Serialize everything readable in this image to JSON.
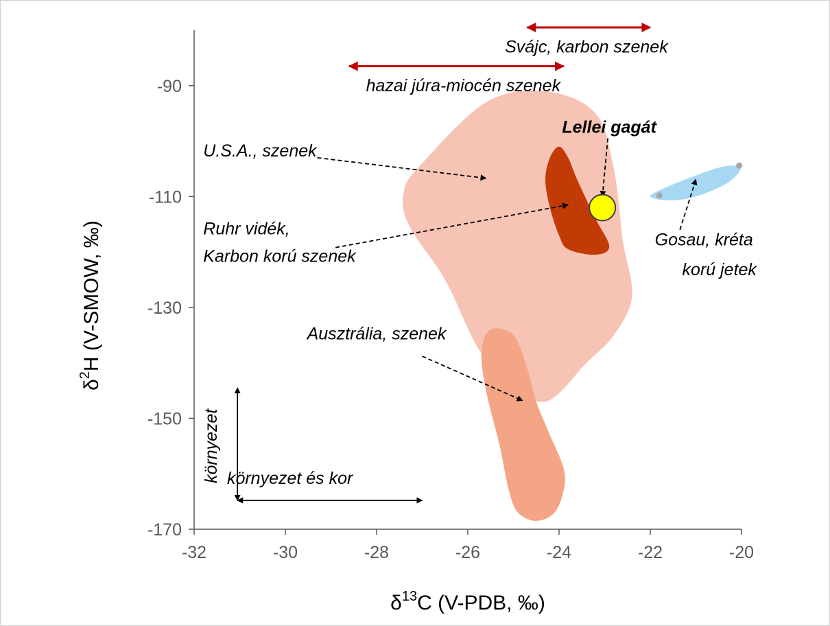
{
  "chart_data": {
    "type": "scatter",
    "title": "",
    "xlabel_symbol": "δ",
    "xlabel_sup": "13",
    "xlabel_rest": "C (V-PDB, ‰)",
    "ylabel_symbol": "δ",
    "ylabel_sup": "2",
    "ylabel_rest": "H (V-SMOW, ‰)",
    "xlim": [
      -32,
      -20
    ],
    "ylim": [
      -170,
      -80
    ],
    "x_ticks": [
      -32,
      -30,
      -28,
      -26,
      -24,
      -22,
      -20
    ],
    "y_ticks": [
      -170,
      -150,
      -130,
      -110,
      -90
    ],
    "grid": false,
    "regions": [
      {
        "id": "usa",
        "color": "#f6c3b4",
        "points": [
          [
            -25.6,
            -93
          ],
          [
            -24.3,
            -91
          ],
          [
            -23.2,
            -95
          ],
          [
            -22.8,
            -105
          ],
          [
            -22.6,
            -118
          ],
          [
            -22.4,
            -128
          ],
          [
            -22.8,
            -135
          ],
          [
            -23.4,
            -140
          ],
          [
            -24.3,
            -147
          ],
          [
            -25.2,
            -143
          ],
          [
            -25.8,
            -137
          ],
          [
            -26.5,
            -125
          ],
          [
            -27.3,
            -115
          ],
          [
            -27.4,
            -109
          ],
          [
            -27,
            -104
          ]
        ]
      },
      {
        "id": "ausztralia",
        "color": "#f4a585",
        "points": [
          [
            -25.5,
            -134
          ],
          [
            -25.0,
            -135
          ],
          [
            -24.7,
            -141
          ],
          [
            -24.5,
            -147
          ],
          [
            -24.2,
            -153
          ],
          [
            -23.9,
            -159
          ],
          [
            -23.9,
            -163
          ],
          [
            -24.1,
            -167
          ],
          [
            -24.5,
            -168.5
          ],
          [
            -24.9,
            -167
          ],
          [
            -25.1,
            -163
          ],
          [
            -25.3,
            -155
          ],
          [
            -25.6,
            -145
          ],
          [
            -25.7,
            -138
          ]
        ]
      },
      {
        "id": "ruhr",
        "color": "#c23b07",
        "points": [
          [
            -24.0,
            -101
          ],
          [
            -23.8,
            -103
          ],
          [
            -23.6,
            -107
          ],
          [
            -23.2,
            -114
          ],
          [
            -22.9,
            -119
          ],
          [
            -23.2,
            -120.5
          ],
          [
            -23.8,
            -119.5
          ],
          [
            -24.0,
            -117
          ],
          [
            -24.2,
            -112
          ],
          [
            -24.3,
            -107
          ],
          [
            -24.2,
            -103
          ]
        ]
      },
      {
        "id": "gosau",
        "color": "#a6d8f4",
        "points": [
          [
            -20.02,
            -104.8
          ],
          [
            -20.3,
            -107.5
          ],
          [
            -21.0,
            -110
          ],
          [
            -21.6,
            -110.7
          ],
          [
            -22.0,
            -110
          ],
          [
            -21.7,
            -108.5
          ],
          [
            -21.0,
            -106.2
          ],
          [
            -20.4,
            -104.6
          ]
        ]
      }
    ],
    "gosau_points": [
      [
        -21.8,
        -109.8
      ],
      [
        -20.05,
        -104.4
      ]
    ],
    "lellei_point": {
      "x": -23.05,
      "y": -112,
      "fill": "#ffff00",
      "stroke": "#3f3f3f"
    },
    "ranges": [
      {
        "id": "svajc",
        "x1": -24.7,
        "x2": -22.0,
        "y": -79.5,
        "color": "#c00000"
      },
      {
        "id": "hazai",
        "x1": -28.6,
        "x2": -23.9,
        "y": -86.5,
        "color": "#c00000"
      }
    ],
    "annotations": [
      {
        "id": "svajc-label",
        "text": "Svájc, karbon szenek",
        "x": -23.4,
        "y": -84.0,
        "anchor": "middle",
        "bold": false
      },
      {
        "id": "hazai-label",
        "text": "hazai júra-miocén szenek",
        "x": -26.1,
        "y": -91.0,
        "anchor": "middle",
        "bold": false
      },
      {
        "id": "lellei-label",
        "text": "Lellei gagát",
        "x": -22.9,
        "y": -98.5,
        "anchor": "middle",
        "bold": true
      },
      {
        "id": "usa-label",
        "text": "U.S.A., szenek",
        "x": -31.8,
        "y": -102.8,
        "anchor": "start",
        "bold": false
      },
      {
        "id": "ruhr-label-1",
        "text": "Ruhr vidék,",
        "x": -31.8,
        "y": -116.8,
        "anchor": "start",
        "bold": false
      },
      {
        "id": "ruhr-label-2",
        "text": "Karbon korú szenek",
        "x": -31.8,
        "y": -121.8,
        "anchor": "start",
        "bold": false
      },
      {
        "id": "gosau-label-1",
        "text": "Gosau, kréta",
        "x": -21.9,
        "y": -118.8,
        "anchor": "start",
        "bold": false
      },
      {
        "id": "gosau-label-2",
        "text": "korú jetek",
        "x": -21.3,
        "y": -124.2,
        "anchor": "start",
        "bold": false
      },
      {
        "id": "ausztralia-label",
        "text": "Ausztrália, szenek",
        "x": -28.0,
        "y": -135.8,
        "anchor": "middle",
        "bold": false
      },
      {
        "id": "kornyezet-es-kor-label",
        "text": "környezet és kor",
        "x": -29.9,
        "y": -161.8,
        "anchor": "middle",
        "bold": false
      },
      {
        "id": "kornyezet-label",
        "text": "környezet",
        "x": -31.5,
        "y": -155.0,
        "anchor": "middle",
        "bold": false,
        "rotate": -90
      }
    ],
    "pointer_arrows": [
      {
        "id": "usa-arrow",
        "from": [
          -29.3,
          -103.0
        ],
        "to": [
          -25.6,
          -106.7
        ]
      },
      {
        "id": "ruhr-arrow",
        "from": [
          -28.9,
          -119.2
        ],
        "to": [
          -23.8,
          -111.5
        ]
      },
      {
        "id": "lellei-arrow",
        "from": [
          -22.93,
          -99.5
        ],
        "to": [
          -23.05,
          -110.0
        ]
      },
      {
        "id": "gosau-arrow",
        "from": [
          -21.35,
          -116.0
        ],
        "to": [
          -21.0,
          -106.9
        ]
      },
      {
        "id": "ausztralia-arrow",
        "from": [
          -27.0,
          -138.8
        ],
        "to": [
          -24.8,
          -146.8
        ]
      }
    ],
    "axis_arrows": [
      {
        "id": "kornyezet-axis-arrow",
        "from": [
          -31.05,
          -164.8
        ],
        "to": [
          -31.05,
          -144.5
        ]
      },
      {
        "id": "kornyezet-es-kor-axis-arrow",
        "from": [
          -31.05,
          -164.8
        ],
        "to": [
          -27.0,
          -164.8
        ]
      }
    ]
  }
}
